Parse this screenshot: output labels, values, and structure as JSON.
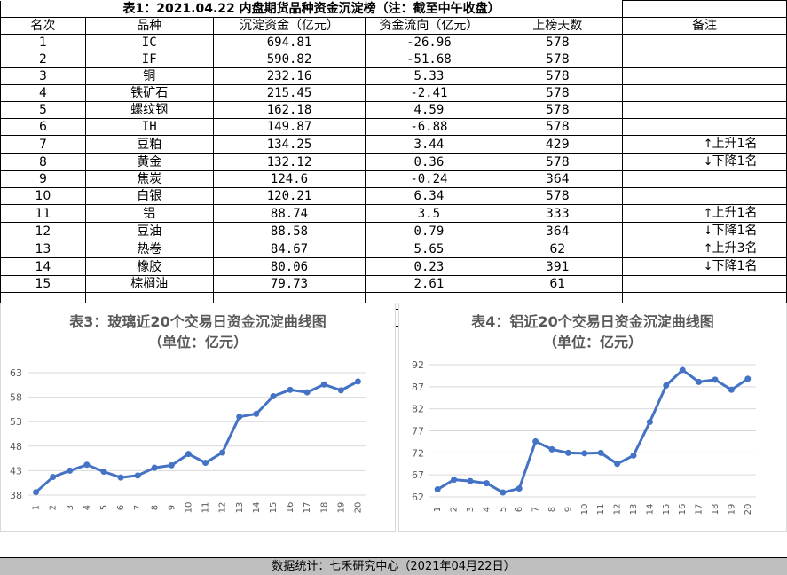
{
  "table": {
    "title": "表1：2021.04.22 内盘期货品种资金沉淀榜（注：截至中午收盘）",
    "headers": [
      "名次",
      "品种",
      "沉淀资金（亿元）",
      "资金流向（亿元）",
      "上榜天数",
      "备注"
    ],
    "rows": [
      {
        "rank": "1",
        "name": "IC",
        "fund": "694.81",
        "flow": "-26.96",
        "days": "578",
        "note": "",
        "arrow": ""
      },
      {
        "rank": "2",
        "name": "IF",
        "fund": "590.82",
        "flow": "-51.68",
        "days": "578",
        "note": "",
        "arrow": ""
      },
      {
        "rank": "3",
        "name": "铜",
        "fund": "232.16",
        "flow": "5.33",
        "days": "578",
        "note": "",
        "arrow": ""
      },
      {
        "rank": "4",
        "name": "铁矿石",
        "fund": "215.45",
        "flow": "-2.41",
        "days": "578",
        "note": "",
        "arrow": ""
      },
      {
        "rank": "5",
        "name": "螺纹钢",
        "fund": "162.18",
        "flow": "4.59",
        "days": "578",
        "note": "",
        "arrow": ""
      },
      {
        "rank": "6",
        "name": "IH",
        "fund": "149.87",
        "flow": "-6.88",
        "days": "578",
        "note": "",
        "arrow": ""
      },
      {
        "rank": "7",
        "name": "豆粕",
        "fund": "134.25",
        "flow": "3.44",
        "days": "429",
        "note": "上升1名",
        "arrow": "↑"
      },
      {
        "rank": "8",
        "name": "黄金",
        "fund": "132.12",
        "flow": "0.36",
        "days": "578",
        "note": "下降1名",
        "arrow": "↓"
      },
      {
        "rank": "9",
        "name": "焦炭",
        "fund": "124.6",
        "flow": "-0.24",
        "days": "364",
        "note": "",
        "arrow": ""
      },
      {
        "rank": "10",
        "name": "白银",
        "fund": "120.21",
        "flow": "6.34",
        "days": "578",
        "note": "",
        "arrow": ""
      },
      {
        "rank": "11",
        "name": "铝",
        "fund": "88.74",
        "flow": "3.5",
        "days": "333",
        "note": "上升1名",
        "arrow": "↑"
      },
      {
        "rank": "12",
        "name": "豆油",
        "fund": "88.58",
        "flow": "0.79",
        "days": "364",
        "note": "下降1名",
        "arrow": "↓"
      },
      {
        "rank": "13",
        "name": "热卷",
        "fund": "84.67",
        "flow": "5.65",
        "days": "62",
        "note": "上升3名",
        "arrow": "↑"
      },
      {
        "rank": "14",
        "name": "橡胶",
        "fund": "80.06",
        "flow": "0.23",
        "days": "391",
        "note": "下降1名",
        "arrow": "↓"
      },
      {
        "rank": "15",
        "name": "棕榈油",
        "fund": "79.73",
        "flow": "2.61",
        "days": "61",
        "note": "",
        "arrow": ""
      }
    ]
  },
  "footer": "数据统计：七禾研究中心（2021年04月22日）",
  "colors": {
    "line": "#4472c4",
    "grid": "#d9d9d9",
    "axis_text": "#595959",
    "footer_bg": "#bfbfbf"
  },
  "chart_data": [
    {
      "type": "line",
      "title": "表3：玻璃近20个交易日资金沉淀曲线图",
      "subtitle": "（单位：亿元）",
      "categories": [
        "1",
        "2",
        "3",
        "4",
        "5",
        "6",
        "7",
        "8",
        "9",
        "10",
        "11",
        "12",
        "13",
        "14",
        "15",
        "16",
        "17",
        "18",
        "19",
        "20"
      ],
      "values": [
        38.6,
        41.7,
        43.0,
        44.2,
        42.8,
        41.6,
        42.0,
        43.6,
        44.1,
        46.4,
        44.6,
        46.7,
        54.0,
        54.6,
        58.2,
        59.5,
        59.0,
        60.6,
        59.4,
        61.2
      ],
      "y_ticks": [
        "38",
        "43",
        "48",
        "53",
        "58",
        "63"
      ],
      "ylim": [
        38,
        63
      ],
      "grid": true
    },
    {
      "type": "line",
      "title": "表4：铝近20个交易日资金沉淀曲线图",
      "subtitle": "（单位：亿元）",
      "categories": [
        "1",
        "2",
        "3",
        "4",
        "5",
        "6",
        "7",
        "8",
        "9",
        "10",
        "11",
        "12",
        "13",
        "14",
        "15",
        "16",
        "17",
        "18",
        "19",
        "20"
      ],
      "values": [
        63.7,
        65.9,
        65.6,
        65.1,
        63.0,
        63.9,
        74.6,
        72.8,
        72.0,
        71.9,
        72.0,
        69.5,
        71.4,
        79.0,
        87.3,
        90.8,
        88.1,
        88.6,
        86.3,
        88.8
      ],
      "y_ticks": [
        "62",
        "67",
        "72",
        "77",
        "82",
        "87",
        "92"
      ],
      "ylim": [
        62,
        92
      ],
      "grid": true
    }
  ]
}
